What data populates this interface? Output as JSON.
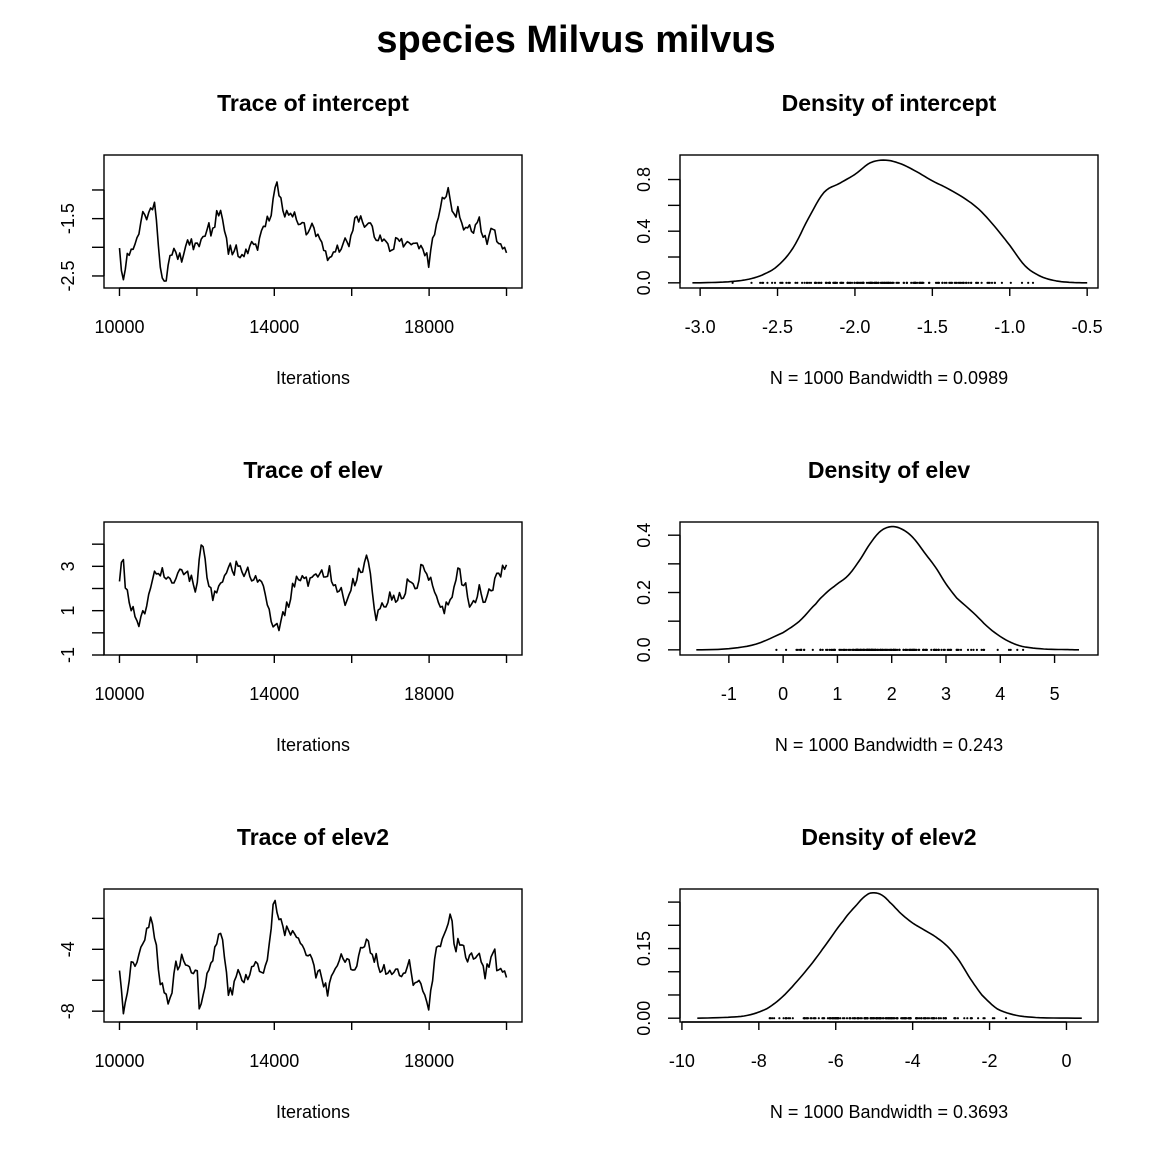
{
  "figure_title": "species Milvus milvus",
  "chart_data": [
    {
      "type": "line",
      "title": "Trace of intercept",
      "xlabel": "Iterations",
      "ylabel": "",
      "x_range": [
        10000,
        20000
      ],
      "xlim": [
        9600,
        20400
      ],
      "xticks": [
        10000,
        12000,
        14000,
        16000,
        18000,
        20000
      ],
      "xtick_labels": [
        "10000",
        "14000",
        "18000"
      ],
      "ylim": [
        -2.71,
        -0.39
      ],
      "yticks": [
        -2.5,
        -2.0,
        -1.5,
        -1.0
      ],
      "ytick_labels": [
        "-2.5",
        "-1.5"
      ],
      "series": [
        {
          "points": 200,
          "mean": -1.8,
          "sd": 0.28,
          "anchors": [
            [
              10000,
              -2.1
            ],
            [
              10080,
              -2.6
            ],
            [
              10300,
              -2.0
            ],
            [
              10600,
              -1.5
            ],
            [
              10900,
              -1.2
            ],
            [
              11000,
              -2.0
            ],
            [
              11100,
              -2.45
            ],
            [
              11500,
              -2.05
            ],
            [
              12000,
              -1.9
            ],
            [
              12400,
              -1.6
            ],
            [
              12600,
              -1.4
            ],
            [
              12800,
              -2.1
            ],
            [
              13300,
              -2.05
            ],
            [
              13900,
              -1.6
            ],
            [
              14000,
              -1.05
            ],
            [
              14300,
              -1.3
            ],
            [
              14600,
              -1.55
            ],
            [
              15000,
              -1.7
            ],
            [
              15400,
              -2.15
            ],
            [
              16000,
              -1.8
            ],
            [
              16400,
              -1.45
            ],
            [
              16800,
              -2.0
            ],
            [
              17300,
              -1.95
            ],
            [
              17800,
              -2.1
            ],
            [
              18000,
              -2.55
            ],
            [
              18200,
              -1.6
            ],
            [
              18500,
              -1.25
            ],
            [
              18900,
              -1.6
            ],
            [
              19300,
              -1.85
            ],
            [
              19700,
              -1.75
            ],
            [
              20000,
              -1.95
            ]
          ]
        }
      ]
    },
    {
      "type": "area",
      "title": "Density of intercept",
      "xlabel": "N = 1000   Bandwidth = 0.0989",
      "ylabel": "",
      "xlim": [
        -3.13,
        -0.43
      ],
      "xticks": [
        -3.0,
        -2.5,
        -2.0,
        -1.5,
        -1.0,
        -0.5
      ],
      "xtick_labels": [
        "-3.0",
        "-2.5",
        "-2.0",
        "-1.5",
        "-1.0",
        "-0.5"
      ],
      "ylim": [
        -0.04,
        0.99
      ],
      "yticks": [
        0.0,
        0.2,
        0.4,
        0.6,
        0.8
      ],
      "ytick_labels": [
        "0.0",
        "0.4",
        "0.8"
      ],
      "n": 1000,
      "bandwidth": 0.0989,
      "rug": {
        "mean": -1.75,
        "sd": 0.42,
        "min": -2.85,
        "max": -0.7
      },
      "series": [
        {
          "x": [
            -3.05,
            -2.9,
            -2.8,
            -2.7,
            -2.6,
            -2.5,
            -2.4,
            -2.3,
            -2.2,
            -2.1,
            -2.0,
            -1.9,
            -1.8,
            -1.7,
            -1.6,
            -1.5,
            -1.4,
            -1.3,
            -1.2,
            -1.1,
            -1.0,
            -0.9,
            -0.8,
            -0.7,
            -0.6,
            -0.5
          ],
          "y": [
            0.0,
            0.003,
            0.01,
            0.025,
            0.06,
            0.13,
            0.27,
            0.5,
            0.7,
            0.77,
            0.84,
            0.93,
            0.95,
            0.92,
            0.86,
            0.79,
            0.73,
            0.66,
            0.57,
            0.44,
            0.29,
            0.13,
            0.05,
            0.015,
            0.003,
            0.0
          ]
        }
      ]
    },
    {
      "type": "line",
      "title": "Trace of elev",
      "xlabel": "Iterations",
      "ylabel": "",
      "x_range": [
        10000,
        20000
      ],
      "xlim": [
        9600,
        20400
      ],
      "xticks": [
        10000,
        12000,
        14000,
        16000,
        18000,
        20000
      ],
      "xtick_labels": [
        "10000",
        "14000",
        "18000"
      ],
      "ylim": [
        -1.0,
        5.0
      ],
      "yticks": [
        -1,
        0,
        1,
        2,
        3,
        4
      ],
      "ytick_labels": [
        "-1",
        "1",
        "3"
      ],
      "series": [
        {
          "points": 200,
          "mean": 2.0,
          "sd": 0.75,
          "anchors": [
            [
              10000,
              2.5
            ],
            [
              10100,
              3.6
            ],
            [
              10300,
              1.3
            ],
            [
              10500,
              0.6
            ],
            [
              10700,
              1.2
            ],
            [
              10900,
              3.2
            ],
            [
              11200,
              2.5
            ],
            [
              11600,
              2.6
            ],
            [
              12000,
              2.2
            ],
            [
              12100,
              4.5
            ],
            [
              12400,
              1.8
            ],
            [
              12700,
              2.8
            ],
            [
              13300,
              2.8
            ],
            [
              13700,
              2.2
            ],
            [
              14000,
              0.3
            ],
            [
              14200,
              0.7
            ],
            [
              14600,
              2.4
            ],
            [
              15000,
              2.3
            ],
            [
              15400,
              2.9
            ],
            [
              15800,
              1.5
            ],
            [
              16200,
              2.5
            ],
            [
              16400,
              3.6
            ],
            [
              16600,
              0.7
            ],
            [
              17000,
              1.6
            ],
            [
              17500,
              1.6
            ],
            [
              17900,
              3.0
            ],
            [
              18200,
              1.3
            ],
            [
              18400,
              0.8
            ],
            [
              18800,
              2.4
            ],
            [
              19300,
              1.6
            ],
            [
              19700,
              2.2
            ],
            [
              20000,
              3.0
            ]
          ]
        }
      ]
    },
    {
      "type": "area",
      "title": "Density of elev",
      "xlabel": "N = 1000   Bandwidth = 0.243",
      "ylabel": "",
      "xlim": [
        -1.9,
        5.8
      ],
      "xticks": [
        -1,
        0,
        1,
        2,
        3,
        4,
        5
      ],
      "xtick_labels": [
        "-1",
        "0",
        "1",
        "2",
        "3",
        "4",
        "5"
      ],
      "ylim": [
        -0.018,
        0.446
      ],
      "yticks": [
        0.0,
        0.1,
        0.2,
        0.3,
        0.4
      ],
      "ytick_labels": [
        "0.0",
        "0.2",
        "0.4"
      ],
      "n": 1000,
      "bandwidth": 0.243,
      "rug": {
        "mean": 2.0,
        "sd": 0.95,
        "min": -0.5,
        "max": 4.6
      },
      "series": [
        {
          "x": [
            -1.6,
            -1.0,
            -0.5,
            0.0,
            0.3,
            0.6,
            0.8,
            1.0,
            1.2,
            1.4,
            1.6,
            1.8,
            2.0,
            2.2,
            2.4,
            2.6,
            2.8,
            3.0,
            3.2,
            3.5,
            3.8,
            4.1,
            4.4,
            4.8,
            5.2,
            5.45
          ],
          "y": [
            0.0,
            0.004,
            0.02,
            0.06,
            0.1,
            0.16,
            0.2,
            0.23,
            0.26,
            0.31,
            0.37,
            0.415,
            0.43,
            0.42,
            0.39,
            0.34,
            0.29,
            0.23,
            0.18,
            0.13,
            0.075,
            0.035,
            0.012,
            0.003,
            0.001,
            0.0
          ]
        }
      ]
    },
    {
      "type": "line",
      "title": "Trace of elev2",
      "xlabel": "Iterations",
      "ylabel": "",
      "x_range": [
        10000,
        20000
      ],
      "xlim": [
        9600,
        20400
      ],
      "xticks": [
        10000,
        12000,
        14000,
        16000,
        18000,
        20000
      ],
      "xtick_labels": [
        "10000",
        "14000",
        "18000"
      ],
      "ylim": [
        -8.7,
        -0.1
      ],
      "yticks": [
        -8,
        -6,
        -4,
        -2
      ],
      "ytick_labels": [
        "-8",
        "-4"
      ],
      "series": [
        {
          "points": 200,
          "mean": -4.9,
          "sd": 1.2,
          "anchors": [
            [
              10000,
              -5.5
            ],
            [
              10080,
              -8.4
            ],
            [
              10300,
              -5.2
            ],
            [
              10600,
              -3.5
            ],
            [
              10850,
              -2.2
            ],
            [
              11000,
              -6.0
            ],
            [
              11200,
              -7.4
            ],
            [
              11500,
              -5.7
            ],
            [
              12000,
              -5.3
            ],
            [
              12100,
              -8.3
            ],
            [
              12400,
              -4.7
            ],
            [
              12600,
              -2.9
            ],
            [
              12800,
              -6.2
            ],
            [
              13300,
              -5.7
            ],
            [
              13800,
              -5.0
            ],
            [
              14000,
              -1.0
            ],
            [
              14300,
              -3.0
            ],
            [
              14600,
              -3.4
            ],
            [
              15000,
              -4.6
            ],
            [
              15400,
              -6.0
            ],
            [
              16000,
              -5.1
            ],
            [
              16400,
              -3.2
            ],
            [
              16800,
              -5.7
            ],
            [
              17300,
              -5.2
            ],
            [
              17800,
              -6.3
            ],
            [
              18000,
              -7.6
            ],
            [
              18200,
              -3.8
            ],
            [
              18500,
              -2.6
            ],
            [
              18900,
              -4.4
            ],
            [
              19300,
              -5.2
            ],
            [
              19700,
              -4.6
            ],
            [
              20000,
              -6.3
            ]
          ]
        }
      ]
    },
    {
      "type": "area",
      "title": "Density of elev2",
      "xlabel": "N = 1000   Bandwidth = 0.3693",
      "ylabel": "",
      "xlim": [
        -10.05,
        0.82
      ],
      "xticks": [
        -10,
        -8,
        -6,
        -4,
        -2,
        0
      ],
      "xtick_labels": [
        "-10",
        "-8",
        "-6",
        "-4",
        "-2",
        "0"
      ],
      "ylim": [
        -0.0082,
        0.2782
      ],
      "yticks": [
        0.0,
        0.05,
        0.1,
        0.15,
        0.2,
        0.25
      ],
      "ytick_labels": [
        "0.00",
        "0.15"
      ],
      "n": 1000,
      "bandwidth": 0.3693,
      "rug": {
        "mean": -4.8,
        "sd": 1.45,
        "min": -8.5,
        "max": -1.2
      },
      "series": [
        {
          "x": [
            -9.6,
            -8.8,
            -8.3,
            -7.8,
            -7.4,
            -7.0,
            -6.6,
            -6.2,
            -5.8,
            -5.5,
            -5.2,
            -5.0,
            -4.8,
            -4.6,
            -4.3,
            -4.0,
            -3.7,
            -3.4,
            -3.1,
            -2.8,
            -2.5,
            -2.2,
            -1.8,
            -1.3,
            -0.7,
            0.4
          ],
          "y": [
            0.0,
            0.002,
            0.006,
            0.02,
            0.045,
            0.08,
            0.12,
            0.165,
            0.21,
            0.24,
            0.265,
            0.27,
            0.265,
            0.25,
            0.225,
            0.205,
            0.19,
            0.175,
            0.155,
            0.125,
            0.085,
            0.05,
            0.02,
            0.006,
            0.001,
            0.0
          ]
        }
      ]
    }
  ]
}
